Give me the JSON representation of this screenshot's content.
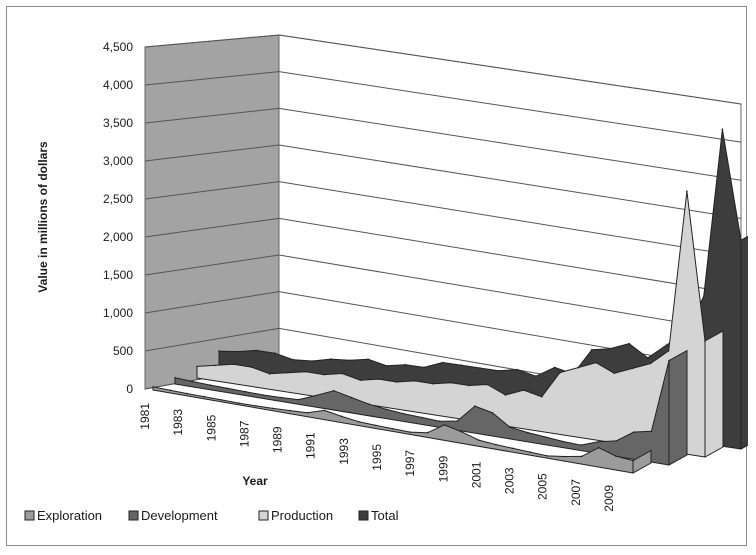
{
  "chart_data": {
    "type": "area",
    "title": "",
    "xlabel": "Year",
    "ylabel": "Value in millions of dollars",
    "ylim": [
      0,
      4500
    ],
    "yticks": [
      "0",
      "500",
      "1,000",
      "1,500",
      "2,000",
      "2,500",
      "3,000",
      "3,500",
      "4,000",
      "4,500"
    ],
    "x": [
      "1981",
      "1982",
      "1983",
      "1984",
      "1985",
      "1986",
      "1987",
      "1988",
      "1989",
      "1990",
      "1991",
      "1992",
      "1993",
      "1994",
      "1995",
      "1996",
      "1997",
      "1998",
      "1999",
      "2000",
      "2001",
      "2002",
      "2003",
      "2004",
      "2005",
      "2006",
      "2007",
      "2008",
      "2009"
    ],
    "xtick_labels": [
      "1981",
      "1983",
      "1985",
      "1987",
      "1989",
      "1991",
      "1993",
      "1995",
      "1997",
      "1999",
      "2001",
      "2003",
      "2005",
      "2007",
      "2009"
    ],
    "legend_position": "bottom",
    "grid": true,
    "series": [
      {
        "name": "Exploration",
        "color": "#9b9b9b",
        "values": [
          40,
          35,
          30,
          28,
          25,
          22,
          25,
          30,
          40,
          50,
          120,
          80,
          50,
          40,
          35,
          30,
          60,
          200,
          150,
          80,
          60,
          50,
          40,
          30,
          60,
          100,
          250,
          180,
          160
        ]
      },
      {
        "name": "Development",
        "color": "#666666",
        "values": [
          80,
          70,
          60,
          55,
          50,
          45,
          50,
          60,
          150,
          250,
          200,
          150,
          120,
          100,
          90,
          80,
          120,
          350,
          300,
          150,
          120,
          100,
          80,
          70,
          150,
          200,
          350,
          400,
          1350
        ]
      },
      {
        "name": "Production",
        "color": "#d4d4d4",
        "values": [
          150,
          200,
          250,
          250,
          200,
          250,
          300,
          300,
          350,
          300,
          350,
          350,
          400,
          400,
          450,
          450,
          500,
          400,
          500,
          450,
          800,
          900,
          1000,
          900,
          1000,
          1100,
          1300,
          3400,
          1500
        ]
      },
      {
        "name": "Total",
        "color": "#3d3d3d",
        "values": [
          270,
          300,
          350,
          350,
          300,
          320,
          380,
          400,
          450,
          400,
          450,
          450,
          550,
          550,
          550,
          550,
          600,
          550,
          700,
          650,
          1000,
          1050,
          1150,
          1000,
          1200,
          1400,
          1900,
          4100,
          2700
        ]
      }
    ]
  }
}
